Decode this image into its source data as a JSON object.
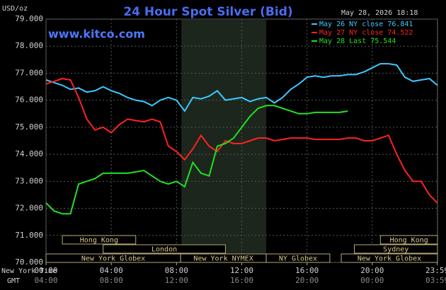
{
  "chart_data": {
    "type": "line",
    "title": "24 Hour Spot Silver (Bid)",
    "y_label": "USD/oz",
    "timestamp": "May 28, 2026 18:18",
    "watermark": "www.kitco.com",
    "x_row_label": "New York Time",
    "x2_row_label": "GMT",
    "x": [
      0,
      0.5,
      1,
      1.5,
      2,
      2.5,
      3,
      3.5,
      4,
      4.5,
      5,
      5.5,
      6,
      6.5,
      7,
      7.5,
      8,
      8.5,
      9,
      9.5,
      10,
      10.5,
      11,
      11.5,
      12,
      12.5,
      13,
      13.5,
      14,
      14.5,
      15,
      15.5,
      16,
      16.5,
      17,
      17.5,
      18,
      18.5,
      19,
      19.5,
      20,
      20.5,
      21,
      21.5,
      22,
      22.5,
      23,
      23.5,
      24
    ],
    "series": [
      {
        "name": "May 26 NY close 76.841",
        "color": "#3cc8ff",
        "values": [
          76.75,
          76.65,
          76.55,
          76.4,
          76.45,
          76.3,
          76.35,
          76.5,
          76.35,
          76.25,
          76.1,
          76.0,
          75.95,
          75.8,
          76.0,
          76.1,
          76.0,
          75.6,
          76.1,
          76.05,
          76.15,
          76.35,
          76.0,
          76.05,
          76.1,
          75.95,
          76.05,
          76.1,
          75.9,
          76.1,
          76.4,
          76.6,
          76.85,
          76.9,
          76.85,
          76.9,
          76.9,
          76.95,
          76.95,
          77.05,
          77.2,
          77.35,
          77.35,
          77.3,
          76.85,
          76.7,
          76.75,
          76.8,
          76.55
        ]
      },
      {
        "name": "May 27 NY close 74.522",
        "color": "#ff2222",
        "values": [
          76.6,
          76.7,
          76.8,
          76.75,
          76.1,
          75.3,
          74.9,
          75.0,
          74.8,
          75.1,
          75.3,
          75.25,
          75.2,
          75.3,
          75.2,
          74.3,
          74.1,
          73.8,
          74.2,
          74.7,
          74.3,
          74.1,
          74.5,
          74.4,
          74.4,
          74.5,
          74.6,
          74.6,
          74.5,
          74.55,
          74.6,
          74.6,
          74.6,
          74.55,
          74.55,
          74.55,
          74.55,
          74.6,
          74.6,
          74.5,
          74.5,
          74.6,
          74.7,
          74.0,
          73.4,
          73.0,
          73.0,
          72.5,
          72.2
        ]
      },
      {
        "name": "May 28 Last 75.544",
        "color": "#22e022",
        "values": [
          72.2,
          71.9,
          71.8,
          71.8,
          72.9,
          73.0,
          73.1,
          73.3,
          73.3,
          73.3,
          73.3,
          73.35,
          73.4,
          73.2,
          73.0,
          72.9,
          73.0,
          72.8,
          73.7,
          73.3,
          73.2,
          74.3,
          74.4,
          74.6,
          75.0,
          75.4,
          75.7,
          75.8,
          75.8,
          75.7,
          75.6,
          75.5,
          75.5,
          75.55,
          75.55,
          75.55,
          75.55,
          75.6,
          null,
          null,
          null,
          null,
          null,
          null,
          null,
          null,
          null,
          null,
          null
        ]
      }
    ],
    "xlim": [
      0,
      24
    ],
    "ylim": [
      70,
      79
    ],
    "xticks": [
      {
        "value": 0,
        "label": "00:00"
      },
      {
        "value": 4,
        "label": "04:00"
      },
      {
        "value": 8,
        "label": "08:00"
      },
      {
        "value": 12,
        "label": "12:00"
      },
      {
        "value": 16,
        "label": "16:00"
      },
      {
        "value": 20,
        "label": "20:00"
      },
      {
        "value": 23.983,
        "label": "23:59"
      }
    ],
    "x2ticks": [
      {
        "value": 0,
        "label": "04:00"
      },
      {
        "value": 4,
        "label": "08:00"
      },
      {
        "value": 8,
        "label": "12:00"
      },
      {
        "value": 12,
        "label": "16:00"
      },
      {
        "value": 16,
        "label": "20:00"
      },
      {
        "value": 20,
        "label": "00:00"
      },
      {
        "value": 23.983,
        "label": "03:59"
      }
    ],
    "yticks": [
      {
        "value": 70,
        "label": "70.000"
      },
      {
        "value": 71,
        "label": "71.000"
      },
      {
        "value": 72,
        "label": "72.000"
      },
      {
        "value": 73,
        "label": "73.000"
      },
      {
        "value": 74,
        "label": "74.000"
      },
      {
        "value": 75,
        "label": "75.000"
      },
      {
        "value": 76,
        "label": "76.000"
      },
      {
        "value": 77,
        "label": "77.000"
      },
      {
        "value": 78,
        "label": "78.000"
      },
      {
        "value": 79,
        "label": "79.000"
      }
    ],
    "grid": true,
    "shaded_range": [
      8.3,
      13.5
    ],
    "sessions": [
      {
        "name": "Hong Kong",
        "start": 1,
        "end": 5.5,
        "row": 0
      },
      {
        "name": "London",
        "start": 3.5,
        "end": 11,
        "row": 1
      },
      {
        "name": "New York Globex",
        "start": 0,
        "end": 8.25,
        "row": 2
      },
      {
        "name": "New York NYMEX",
        "start": 8.25,
        "end": 13.5,
        "row": 2
      },
      {
        "name": "NY Globex",
        "start": 13.5,
        "end": 17.4,
        "row": 2
      },
      {
        "name": "New York Globex",
        "start": 18.1,
        "end": 24,
        "row": 2
      },
      {
        "name": "Sydney",
        "start": 18.9,
        "end": 24,
        "row": 1
      },
      {
        "name": "Hong Kong",
        "start": 20.5,
        "end": 24,
        "row": 0
      }
    ]
  }
}
